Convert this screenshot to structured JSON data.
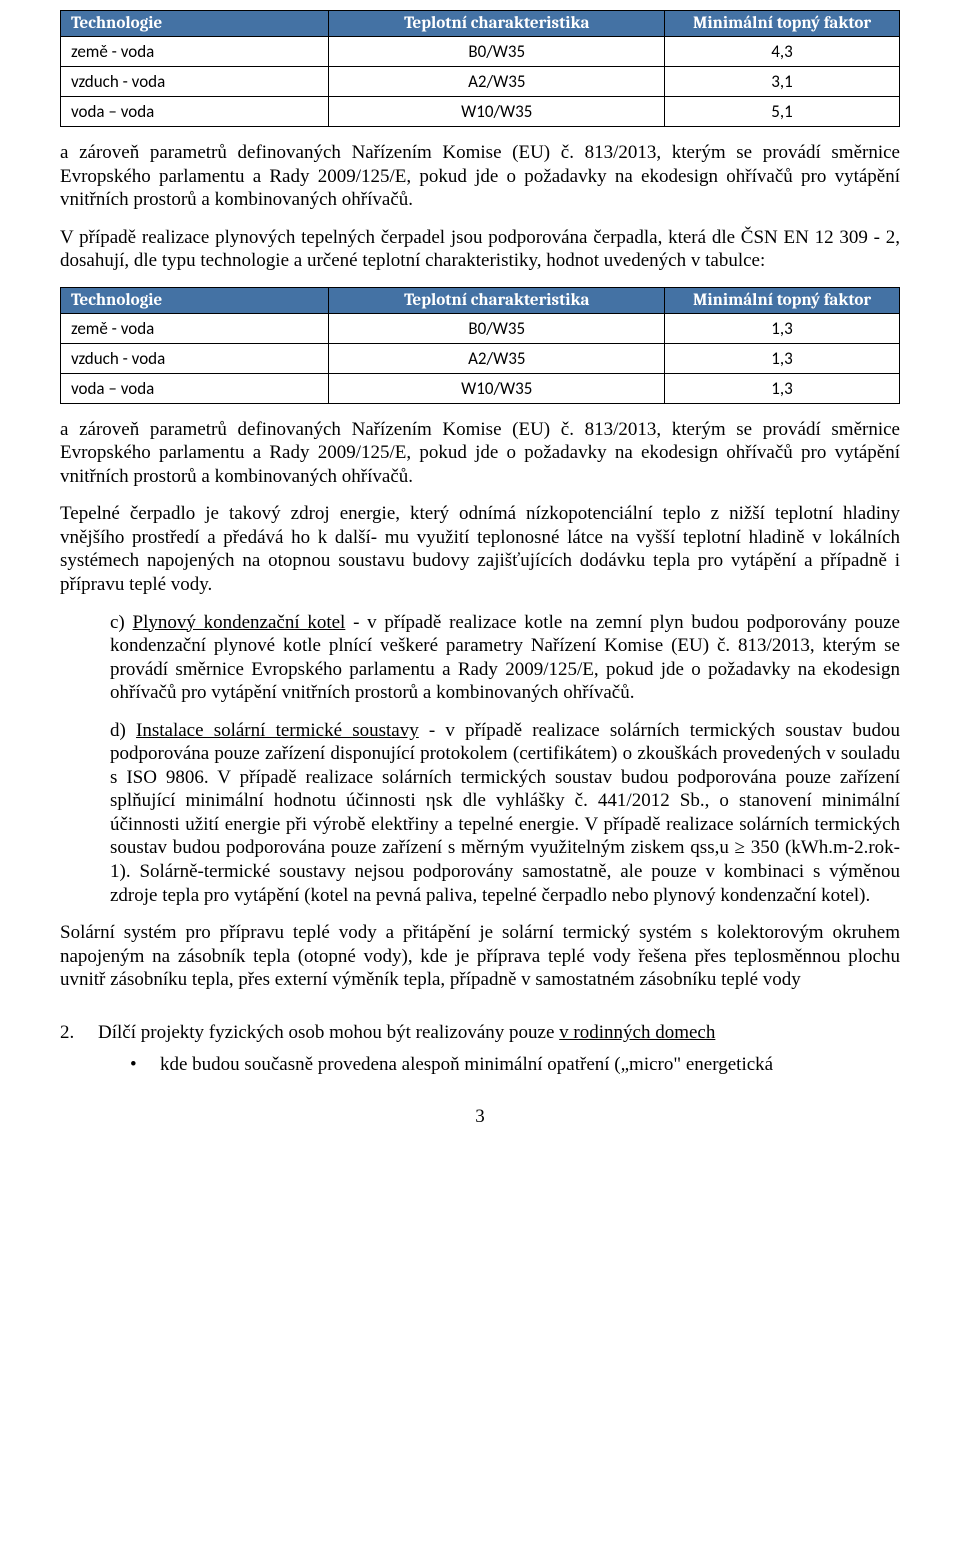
{
  "table1": {
    "header_bg": "#4472a4",
    "header_fg": "#ffffff",
    "columns": [
      "Technologie",
      "Teplotní charakteristika",
      "Minimální topný faktor"
    ],
    "rows": [
      [
        "země - voda",
        "B0/W35",
        "4,3"
      ],
      [
        "vzduch - voda",
        "A2/W35",
        "3,1"
      ],
      [
        "voda – voda",
        "W10/W35",
        "5,1"
      ]
    ]
  },
  "para1": "a zároveň parametrů definovaných Nařízením Komise (EU) č. 813/2013, kterým se provádí směrnice Evropského parlamentu a Rady 2009/125/E, pokud jde o požadavky na ekodesign ohřívačů pro vytápění vnitřních prostorů a kombinovaných ohřívačů.",
  "para2": "V případě realizace plynových tepelných čerpadel jsou podporována čerpadla, která dle ČSN EN 12 309 - 2, dosahují, dle typu technologie a určené teplotní charakteristiky, hodnot uvedených v tabulce:",
  "table2": {
    "header_bg": "#4472a4",
    "header_fg": "#ffffff",
    "columns": [
      "Technologie",
      "Teplotní charakteristika",
      "Minimální topný faktor"
    ],
    "rows": [
      [
        "země - voda",
        "B0/W35",
        "1,3"
      ],
      [
        "vzduch - voda",
        "A2/W35",
        "1,3"
      ],
      [
        "voda – voda",
        "W10/W35",
        "1,3"
      ]
    ]
  },
  "para3": "a zároveň parametrů definovaných Nařízením Komise (EU) č. 813/2013, kterým se provádí směrnice Evropského parlamentu a Rady 2009/125/E, pokud jde o požadavky na ekodesign ohřívačů pro vytápění vnitřních prostorů a kombinovaných ohřívačů.",
  "para4": "Tepelné čerpadlo je takový zdroj energie, který odnímá nízkopotenciální teplo z nižší teplotní hladiny vnějšího prostředí a předává ho k další- mu využití teplonosné látce na vyšší teplotní hladině v lokálních systémech napojených na otopnou soustavu budovy zajišťujících dodávku tepla pro vytápění a případně i přípravu teplé vody.",
  "para5_prefix": "c) ",
  "para5_underline": "Plynový kondenzační kotel",
  "para5_rest": " - v případě realizace kotle na zemní plyn budou podporovány pouze kondenzační plynové kotle plnící veškeré parametry Nařízení Komise (EU) č. 813/2013, kterým se provádí směrnice Evropského parlamentu a Rady 2009/125/E, pokud jde o požadavky na ekodesign ohřívačů pro vytápění vnitřních prostorů a kombinovaných ohřívačů.",
  "para6_prefix": "d) ",
  "para6_underline": "Instalace solární termické soustavy",
  "para6_rest": " - v případě realizace solárních termických soustav budou podporována pouze zařízení disponující protokolem (certifikátem) o zkouškách provedených v souladu s ISO 9806. V případě realizace solárních termických soustav budou podporována pouze zařízení splňující minimální hodnotu účinnosti ηsk dle vyhlášky č. 441/2012 Sb., o stanovení minimální účinnosti užití energie při výrobě elektřiny a tepelné energie. V případě realizace solárních termických soustav budou podporována pouze zařízení s měrným využitelným ziskem qss,u ≥ 350 (kWh.m-2.rok-1). Solárně-termické soustavy nejsou podporovány samostatně, ale pouze v kombinaci s výměnou zdroje tepla pro vytápění (kotel na pevná paliva, tepelné čerpadlo nebo plynový kondenzační kotel).",
  "para7": "Solární systém pro přípravu teplé vody a přitápění je solární termický systém s kolektorovým okruhem napojeným na zásobník tepla (otopné vody), kde je příprava teplé vody řešena přes teplosměnnou plochu uvnitř zásobníku tepla, přes externí výměník tepla, případně v samostatném zásobníku teplé vody",
  "list_num": "2.",
  "list_text_pre": "Dílčí projekty fyzických osob mohou být realizovány pouze ",
  "list_text_underline": "v rodinných domech",
  "bullet_text": "kde budou současně provedena alespoň minimální opatření („micro\" energetická",
  "page_number": "3"
}
